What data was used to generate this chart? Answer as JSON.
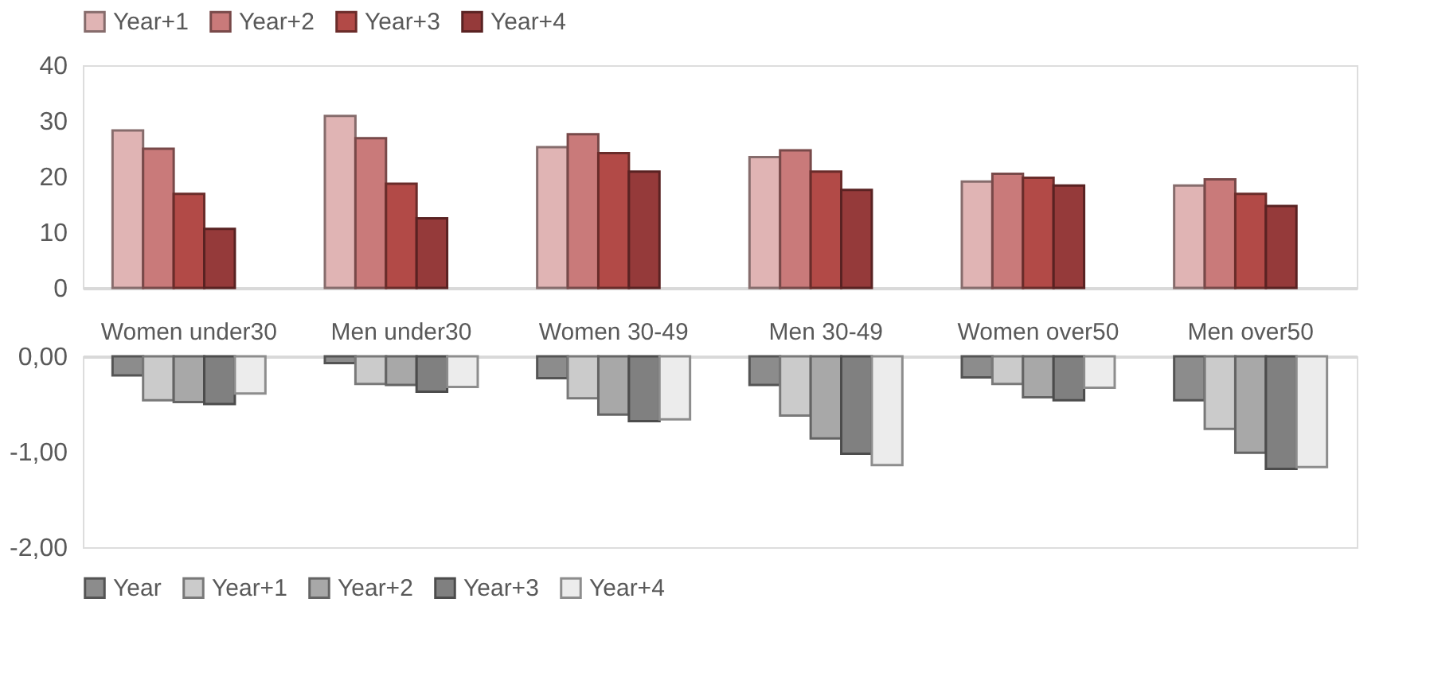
{
  "chart_data": [
    {
      "type": "bar",
      "categories": [
        null,
        null,
        null,
        null,
        null,
        null
      ],
      "tick_labels": "y",
      "ylim": [
        0,
        40
      ],
      "yticks": [
        0,
        10,
        20,
        30,
        40
      ],
      "legend": "top",
      "grid": false,
      "series": [
        {
          "name": "Year+1",
          "color": "#e0b4b4",
          "values": [
            28.3,
            30.9,
            25.3,
            23.5,
            19.1,
            18.4
          ]
        },
        {
          "name": "Year+2",
          "color": "#c97a7a",
          "values": [
            25.0,
            26.9,
            27.6,
            24.7,
            20.5,
            19.5
          ]
        },
        {
          "name": "Year+3",
          "color": "#b24a47",
          "values": [
            16.9,
            18.7,
            24.2,
            20.9,
            19.8,
            16.9
          ]
        },
        {
          "name": "Year+4",
          "color": "#953a3a",
          "values": [
            10.6,
            12.5,
            20.9,
            17.6,
            18.4,
            14.7
          ]
        }
      ]
    },
    {
      "type": "bar",
      "categories": [
        "Women under30",
        "Men under30",
        "Women 30-49",
        "Men 30-49",
        "Women over50",
        "Men over50"
      ],
      "ylim": [
        -2,
        0
      ],
      "yticks": [
        {
          "value": 0,
          "label": "0,00"
        },
        {
          "value": -1,
          "label": "-1,00"
        },
        {
          "value": -2,
          "label": "-2,00"
        }
      ],
      "legend": "bottom",
      "grid": false,
      "series": [
        {
          "name": "Year",
          "color": "#8c8c8c",
          "values": [
            -0.2,
            -0.07,
            -0.23,
            -0.3,
            -0.22,
            -0.46
          ]
        },
        {
          "name": "Year+1",
          "color": "#cbcbcb",
          "values": [
            -0.46,
            -0.29,
            -0.44,
            -0.62,
            -0.29,
            -0.76
          ]
        },
        {
          "name": "Year+2",
          "color": "#a8a8a8",
          "values": [
            -0.48,
            -0.3,
            -0.61,
            -0.86,
            -0.43,
            -1.01
          ]
        },
        {
          "name": "Year+3",
          "color": "#808080",
          "values": [
            -0.5,
            -0.37,
            -0.68,
            -1.02,
            -0.46,
            -1.18
          ]
        },
        {
          "name": "Year+4",
          "color": "#ececec",
          "values": [
            -0.39,
            -0.32,
            -0.66,
            -1.14,
            -0.33,
            -1.16
          ]
        }
      ]
    }
  ]
}
